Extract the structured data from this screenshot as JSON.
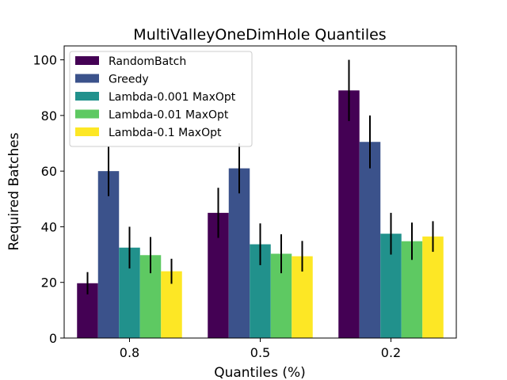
{
  "chart_data": {
    "type": "bar",
    "title": "MultiValleyOneDimHole Quantiles",
    "xlabel": "Quantiles (%)",
    "ylabel": "Required Batches",
    "categories": [
      "0.8",
      "0.5",
      "0.2"
    ],
    "ylim": [
      0,
      105
    ],
    "yticks": [
      0,
      20,
      40,
      60,
      80,
      100
    ],
    "legend_position": "top-left",
    "series": [
      {
        "name": "RandomBatch",
        "color": "#440154",
        "values": [
          19.7,
          45.0,
          89.0
        ],
        "errors": [
          4.0,
          9.0,
          11.0
        ]
      },
      {
        "name": "Greedy",
        "color": "#3b528b",
        "values": [
          60.0,
          61.0,
          70.5
        ],
        "errors": [
          9.0,
          9.0,
          9.5
        ]
      },
      {
        "name": "Lambda-0.001 MaxOpt",
        "color": "#21918c",
        "values": [
          32.5,
          33.7,
          37.5
        ],
        "errors": [
          7.5,
          7.5,
          7.5
        ]
      },
      {
        "name": "Lambda-0.01 MaxOpt",
        "color": "#5ec962",
        "values": [
          29.8,
          30.3,
          34.8
        ],
        "errors": [
          6.5,
          7.0,
          6.7
        ]
      },
      {
        "name": "Lambda-0.1 MaxOpt",
        "color": "#fde725",
        "values": [
          24.0,
          29.4,
          36.5
        ],
        "errors": [
          4.5,
          5.5,
          5.5
        ]
      }
    ]
  }
}
